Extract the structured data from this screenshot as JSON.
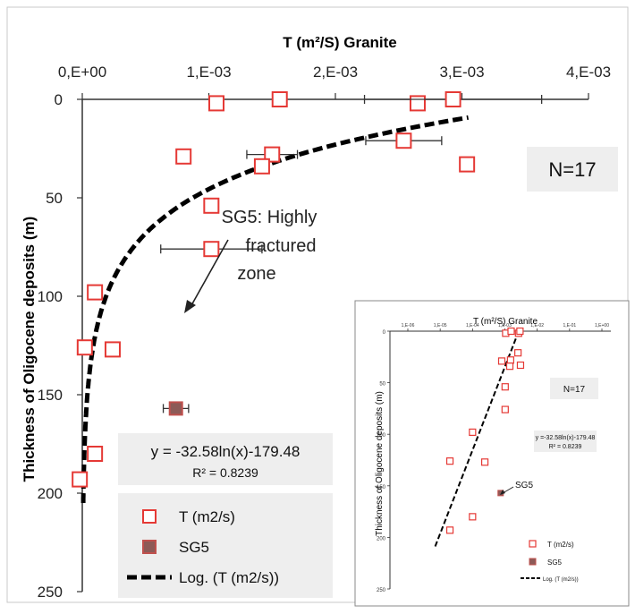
{
  "chart_data": [
    {
      "type": "scatter",
      "title": "T (m²/S) Granite",
      "xlabel": "T (m²/S) Granite",
      "ylabel": "Thickness of Oligocene deposits (m)",
      "x_axis_position": "top",
      "y_axis_inverted": true,
      "xlim": [
        0,
        0.004
      ],
      "ylim": [
        0,
        250
      ],
      "x_tick_labels": [
        "0,E+00",
        "1,E-03",
        "2,E-03",
        "3,E-03",
        "4,E-03"
      ],
      "x_ticks": [
        0,
        0.001,
        0.002,
        0.003,
        0.004
      ],
      "y_ticks": [
        0,
        50,
        100,
        150,
        200,
        250
      ],
      "grid": false,
      "series": [
        {
          "name": "T (m2/s)",
          "marker": "open-square",
          "color": "#e53935",
          "points": [
            {
              "x": 0.00106,
              "y": 2
            },
            {
              "x": 0.00156,
              "y": 0
            },
            {
              "x": 0.00265,
              "y": 2
            },
            {
              "x": 0.00293,
              "y": 0,
              "xerr": 0.0007
            },
            {
              "x": 0.00254,
              "y": 21,
              "xerr": 0.0003
            },
            {
              "x": 0.0008,
              "y": 29
            },
            {
              "x": 0.0015,
              "y": 28,
              "xerr": 0.0002
            },
            {
              "x": 0.00142,
              "y": 34
            },
            {
              "x": 0.00304,
              "y": 33
            },
            {
              "x": 0.00102,
              "y": 54
            },
            {
              "x": 0.00102,
              "y": 76,
              "xerr": 0.0004
            },
            {
              "x": 0.0001,
              "y": 98
            },
            {
              "x": 2e-05,
              "y": 126
            },
            {
              "x": 0.00024,
              "y": 127
            },
            {
              "x": 0.0001,
              "y": 180
            },
            {
              "x": -2e-05,
              "y": 193
            }
          ]
        },
        {
          "name": "SG5",
          "marker": "filled-square",
          "color": "#8d5a57",
          "points": [
            {
              "x": 0.00074,
              "y": 157,
              "xerr": 0.0001
            }
          ]
        },
        {
          "name": "Log. (T (m2/s))",
          "type": "line",
          "style": "dashed",
          "color": "#000000",
          "equation": "y = -32.58ln(x)-179.48",
          "coefficients": {
            "a": -32.58,
            "b": -179.48
          },
          "x_range": [
            7.5e-06,
            0.00305
          ]
        }
      ],
      "annotations": {
        "sample_count": "N=17",
        "callout_line1": "SG5: Highly",
        "callout_line2": "fractured",
        "callout_line3": "zone",
        "equation": "y = -32.58ln(x)-179.48",
        "r_squared": "R² = 0.8239"
      },
      "legend": {
        "placement": "bottom-center",
        "entries": [
          "T (m2/s)",
          "SG5",
          "Log. (T (m2/s))"
        ]
      }
    },
    {
      "type": "scatter",
      "title": "T (m²/S) Granite",
      "xlabel": "T (m²/S) Granite",
      "ylabel": "Thickness of Oligocene deposits (m)",
      "x_scale": "log",
      "x_tick_labels": [
        "1,E-06",
        "1,E-05",
        "1,E-04",
        "1,E-03",
        "1,E-02",
        "1,E-01",
        "1,E+00"
      ],
      "y_ticks": [
        0,
        50,
        100,
        150,
        200,
        250
      ],
      "sample_count": "N=17",
      "equation": "y =-32.58ln(x)-179.48",
      "r_squared": "R² = 0.8239",
      "callout": "SG5",
      "legend": [
        "T (m2/s)",
        "SG5",
        "Log. (T (m2/s))"
      ]
    }
  ]
}
